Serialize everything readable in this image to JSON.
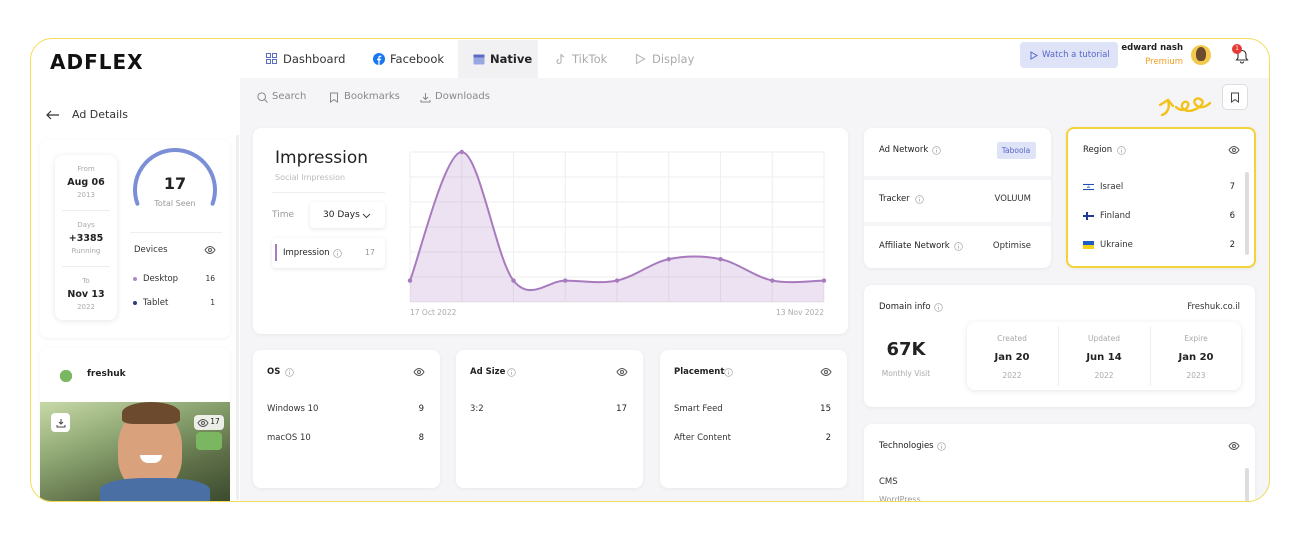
{
  "logo": "ADFLEX",
  "tabs": [
    "Dashboard",
    "Facebook",
    "Native",
    "TikTok",
    "Display"
  ],
  "header": {
    "tutorial": "Watch a tutorial",
    "user_name": "edward nash",
    "user_plan": "Premium",
    "notifications": 1
  },
  "toolbar": [
    "Search",
    "Bookmarks",
    "Downloads"
  ],
  "sidebar": {
    "title": "Ad Details",
    "from": {
      "label": "From",
      "date": "Aug 06",
      "year": "2013"
    },
    "days": {
      "label": "Days",
      "value": "+3385",
      "status": "Running"
    },
    "to": {
      "label": "To",
      "date": "Nov 13",
      "year": "2022"
    },
    "total_seen": 17,
    "total_seen_label": "Total Seen",
    "devices": {
      "title": "Devices",
      "items": [
        {
          "name": "Desktop",
          "value": 16
        },
        {
          "name": "Tablet",
          "value": 1
        }
      ]
    },
    "advertiser": "freshuk",
    "ad_views": 17
  },
  "impression": {
    "title": "Impression",
    "subtitle": "Social Impression",
    "time_label": "Time",
    "time_value": "30 Days",
    "metric": "Impression",
    "metric_value": 17,
    "chart": {
      "type": "line",
      "x": [
        "17 Oct 2022",
        null,
        null,
        null,
        null,
        null,
        null,
        null,
        "13 Nov 2022"
      ],
      "values": [
        2,
        14,
        2,
        2,
        2,
        4,
        4,
        2,
        2
      ],
      "color": "#a77bbd"
    }
  },
  "os": {
    "title": "OS",
    "items": [
      {
        "name": "Windows 10",
        "value": 9
      },
      {
        "name": "macOS 10",
        "value": 8
      }
    ]
  },
  "ad_size": {
    "title": "Ad Size",
    "items": [
      {
        "name": "3:2",
        "value": 17
      }
    ]
  },
  "placement": {
    "title": "Placement",
    "items": [
      {
        "name": "Smart Feed",
        "value": 15
      },
      {
        "name": "After Content",
        "value": 2
      }
    ]
  },
  "network": {
    "rows": [
      {
        "label": "Ad Network",
        "value": "Taboola"
      },
      {
        "label": "Tracker",
        "value": "VOLUUM"
      },
      {
        "label": "Affiliate Network",
        "value": "Optimise"
      }
    ]
  },
  "region": {
    "title": "Region",
    "items": [
      {
        "name": "Israel",
        "value": 7
      },
      {
        "name": "Finland",
        "value": 6
      },
      {
        "name": "Ukraine",
        "value": 2
      }
    ]
  },
  "domain": {
    "title": "Domain info",
    "domain": "Freshuk.co.il",
    "visits": "67K",
    "visits_label": "Monthly Visit",
    "dates": [
      {
        "label": "Created",
        "date": "Jan 20",
        "year": "2022"
      },
      {
        "label": "Updated",
        "date": "Jun 14",
        "year": "2022"
      },
      {
        "label": "Expire",
        "date": "Jan 20",
        "year": "2023"
      }
    ]
  },
  "technologies": {
    "title": "Technologies",
    "category": "CMS",
    "items": [
      "WordPress"
    ]
  }
}
